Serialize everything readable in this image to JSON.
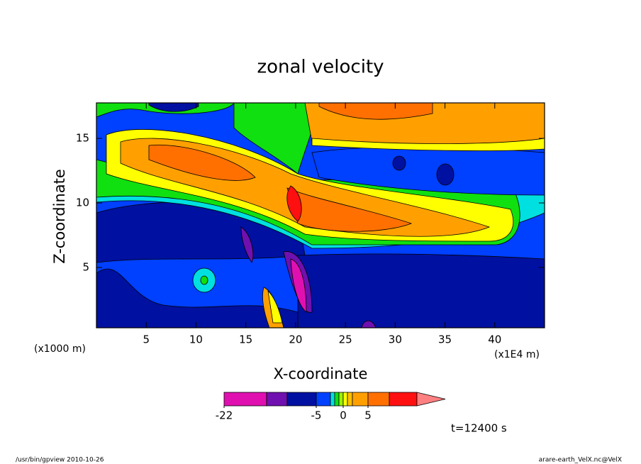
{
  "chart_data": {
    "type": "contour",
    "title": "zonal velocity",
    "x_label": "X-coordinate",
    "y_label": "Z-coordinate",
    "x_unit_label": "(x1E4 m)",
    "y_unit_label": "(x1000 m)",
    "xlim": [
      0,
      45
    ],
    "xticks": [
      5,
      10,
      15,
      20,
      25,
      30,
      35,
      40
    ],
    "ylim": [
      0.33,
      17.75
    ],
    "yticks": [
      5,
      10,
      15
    ],
    "colorbar": {
      "levels": [
        -22,
        -15,
        -10,
        -5,
        -3,
        -2,
        -1,
        0,
        1,
        2,
        5,
        10,
        15
      ],
      "colors": [
        "#e010b0",
        "#7010b0",
        "#0010a0",
        "#0040ff",
        "#00e0e0",
        "#10e010",
        "#a0f000",
        "#ffff00",
        "#ffc000",
        "#ffa000",
        "#ff7000",
        "#ff1010"
      ],
      "extend_color": "#ff8080",
      "ticks": [
        -22,
        -5,
        0,
        5
      ]
    },
    "time_label": "t=12400 s"
  },
  "footer": {
    "left": "/usr/bin/gpview  2010-10-26",
    "right": "arare-earth_VelX.nc@VelX"
  }
}
